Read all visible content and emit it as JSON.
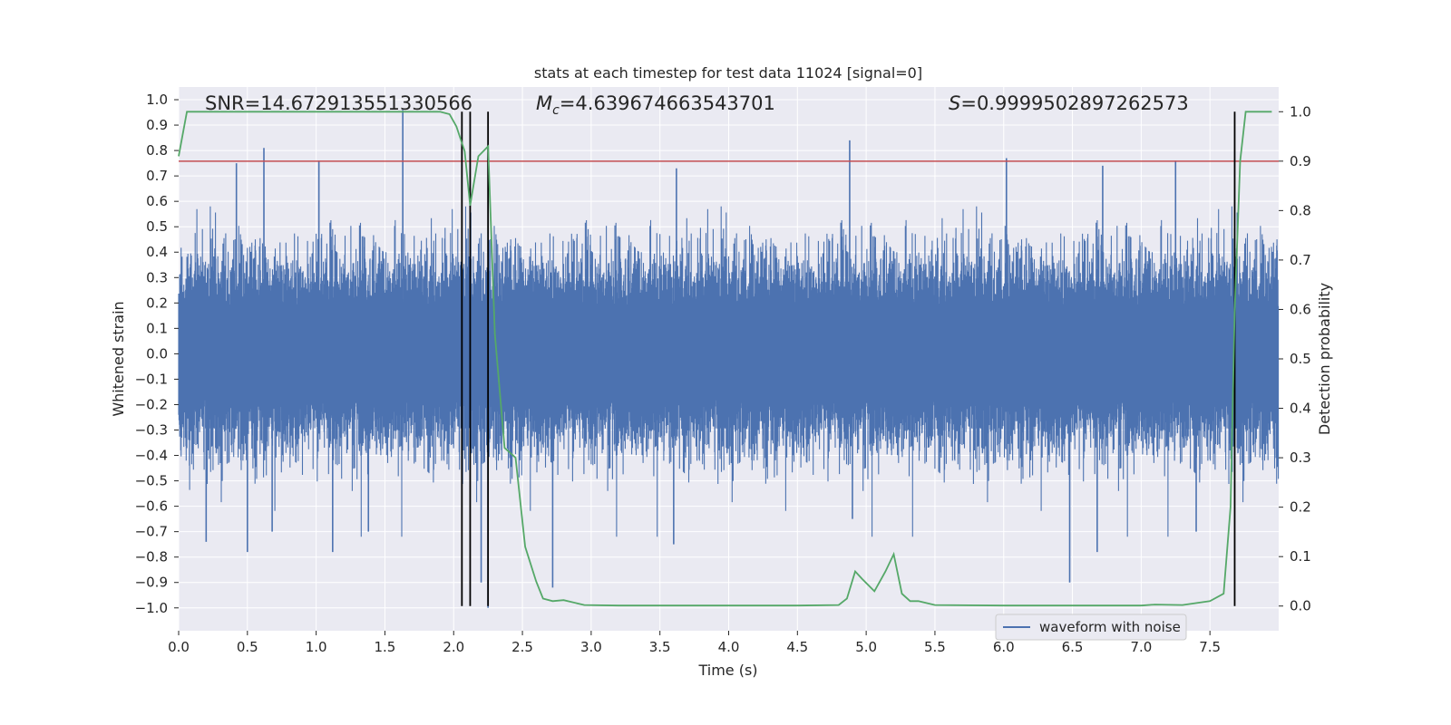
{
  "chart_data": {
    "type": "line",
    "title": "stats at each timestep for test data 11024 [signal=0]",
    "xlabel": "Time (s)",
    "ylabel": "Whitened strain",
    "ylabel_right": "Detection probability",
    "xlim": [
      0.0,
      8.0
    ],
    "ylim": [
      -1.09,
      1.05
    ],
    "ylim_right": [
      -0.05,
      1.05
    ],
    "x_ticks": [
      "0.0",
      "0.5",
      "1.0",
      "1.5",
      "2.0",
      "2.5",
      "3.0",
      "3.5",
      "4.0",
      "4.5",
      "5.0",
      "5.5",
      "6.0",
      "6.5",
      "7.0",
      "7.5"
    ],
    "y_ticks": [
      "1.0",
      "0.9",
      "0.8",
      "0.7",
      "0.6",
      "0.5",
      "0.4",
      "0.3",
      "0.2",
      "0.1",
      "0.0",
      "-0.1",
      "-0.2",
      "-0.3",
      "-0.4",
      "-0.5",
      "-0.6",
      "-0.7",
      "-0.8",
      "-0.9",
      "-1.0"
    ],
    "y_ticks_right": [
      "1.0",
      "0.9",
      "0.8",
      "0.7",
      "0.6",
      "0.5",
      "0.4",
      "0.3",
      "0.2",
      "0.1",
      "0.0"
    ],
    "grid": true,
    "legend": {
      "entries": [
        "waveform with noise"
      ],
      "position": "lower-right"
    },
    "annotations": {
      "snr": "SNR=14.672913551330566",
      "mc_symbol": "M",
      "mc_sub": "c",
      "mc_value": "=4.639674663543701",
      "s_symbol": "S",
      "s_value": "=0.9999502897262573"
    },
    "threshold": {
      "axis": "right",
      "value": 0.9,
      "color": "#c44e52"
    },
    "vertical_lines": [
      2.06,
      2.12,
      2.25,
      7.68
    ],
    "series": [
      {
        "name": "waveform with noise",
        "axis": "left",
        "color": "#4c72b0",
        "kind": "noise",
        "typical_envelope": 0.4,
        "extremes": [
          {
            "x": 0.2,
            "y": -0.74
          },
          {
            "x": 0.42,
            "y": 0.75
          },
          {
            "x": 0.5,
            "y": -0.78
          },
          {
            "x": 0.62,
            "y": 0.81
          },
          {
            "x": 0.68,
            "y": -0.7
          },
          {
            "x": 1.02,
            "y": 0.76
          },
          {
            "x": 1.12,
            "y": -0.78
          },
          {
            "x": 1.38,
            "y": -0.7
          },
          {
            "x": 1.63,
            "y": 0.96
          },
          {
            "x": 2.25,
            "y": -1.0
          },
          {
            "x": 2.2,
            "y": -0.9
          },
          {
            "x": 2.72,
            "y": -0.92
          },
          {
            "x": 3.6,
            "y": -0.75
          },
          {
            "x": 3.62,
            "y": 0.73
          },
          {
            "x": 4.88,
            "y": 0.84
          },
          {
            "x": 4.9,
            "y": -0.65
          },
          {
            "x": 6.02,
            "y": 0.77
          },
          {
            "x": 6.48,
            "y": -0.9
          },
          {
            "x": 6.68,
            "y": -0.78
          },
          {
            "x": 6.72,
            "y": 0.74
          },
          {
            "x": 7.25,
            "y": 0.76
          },
          {
            "x": 7.4,
            "y": -0.7
          }
        ]
      },
      {
        "name": "detection probability",
        "axis": "right",
        "color": "#55a868",
        "x": [
          0.0,
          0.06,
          0.3,
          1.9,
          1.97,
          2.02,
          2.08,
          2.12,
          2.18,
          2.25,
          2.3,
          2.37,
          2.45,
          2.52,
          2.6,
          2.65,
          2.72,
          2.8,
          2.95,
          3.2,
          3.5,
          4.0,
          4.5,
          4.8,
          4.86,
          4.92,
          4.97,
          5.06,
          5.14,
          5.2,
          5.26,
          5.32,
          5.38,
          5.5,
          6.0,
          6.5,
          7.0,
          7.1,
          7.3,
          7.5,
          7.6,
          7.65,
          7.68,
          7.72,
          7.76,
          7.95
        ],
        "values": [
          0.91,
          1.0,
          1.0,
          1.0,
          0.995,
          0.97,
          0.92,
          0.81,
          0.91,
          0.93,
          0.55,
          0.32,
          0.3,
          0.12,
          0.05,
          0.015,
          0.01,
          0.012,
          0.002,
          0.001,
          0.001,
          0.001,
          0.001,
          0.002,
          0.015,
          0.07,
          0.055,
          0.03,
          0.07,
          0.105,
          0.025,
          0.01,
          0.01,
          0.002,
          0.001,
          0.001,
          0.001,
          0.003,
          0.002,
          0.01,
          0.025,
          0.2,
          0.6,
          0.9,
          1.0,
          1.0
        ]
      }
    ]
  }
}
